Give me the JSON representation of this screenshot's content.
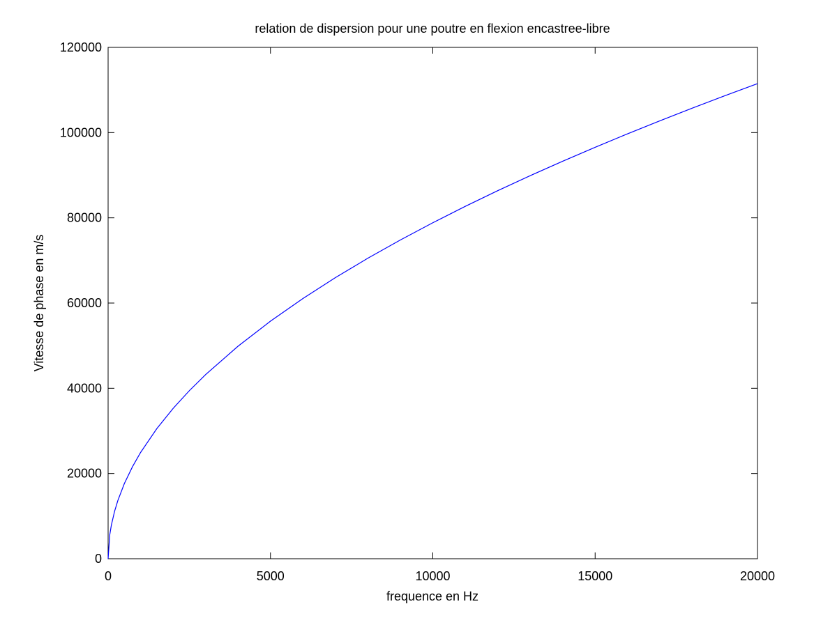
{
  "chart_data": {
    "type": "line",
    "title": "relation de dispersion pour une poutre en flexion encastree-libre",
    "xlabel": "frequence en Hz",
    "ylabel": "Vitesse de phase en m/s",
    "xlim": [
      0,
      20000
    ],
    "ylim": [
      0,
      120000
    ],
    "xticks": [
      0,
      5000,
      10000,
      15000,
      20000
    ],
    "yticks": [
      0,
      20000,
      40000,
      60000,
      80000,
      100000,
      120000
    ],
    "xtick_labels": [
      "0",
      "5000",
      "10000",
      "15000",
      "20000"
    ],
    "ytick_labels": [
      "0",
      "20000",
      "40000",
      "60000",
      "80000",
      "100000",
      "120000"
    ],
    "grid": false,
    "series": [
      {
        "color": "#0000ff",
        "x": [
          0,
          50,
          100,
          200,
          300,
          500,
          750,
          1000,
          1500,
          2000,
          2500,
          3000,
          4000,
          5000,
          6000,
          7000,
          8000,
          9000,
          10000,
          11000,
          12000,
          13000,
          14000,
          15000,
          16000,
          17000,
          18000,
          19000,
          20000
        ],
        "y": [
          0,
          5575,
          7884,
          11150,
          13656,
          17630,
          21592,
          24932,
          30535,
          35259,
          39421,
          43184,
          49864,
          55749,
          61071,
          65963,
          70518,
          74796,
          78843,
          82692,
          86368,
          89894,
          93287,
          96558,
          99722,
          102789,
          105768,
          108666,
          111490
        ]
      }
    ]
  }
}
